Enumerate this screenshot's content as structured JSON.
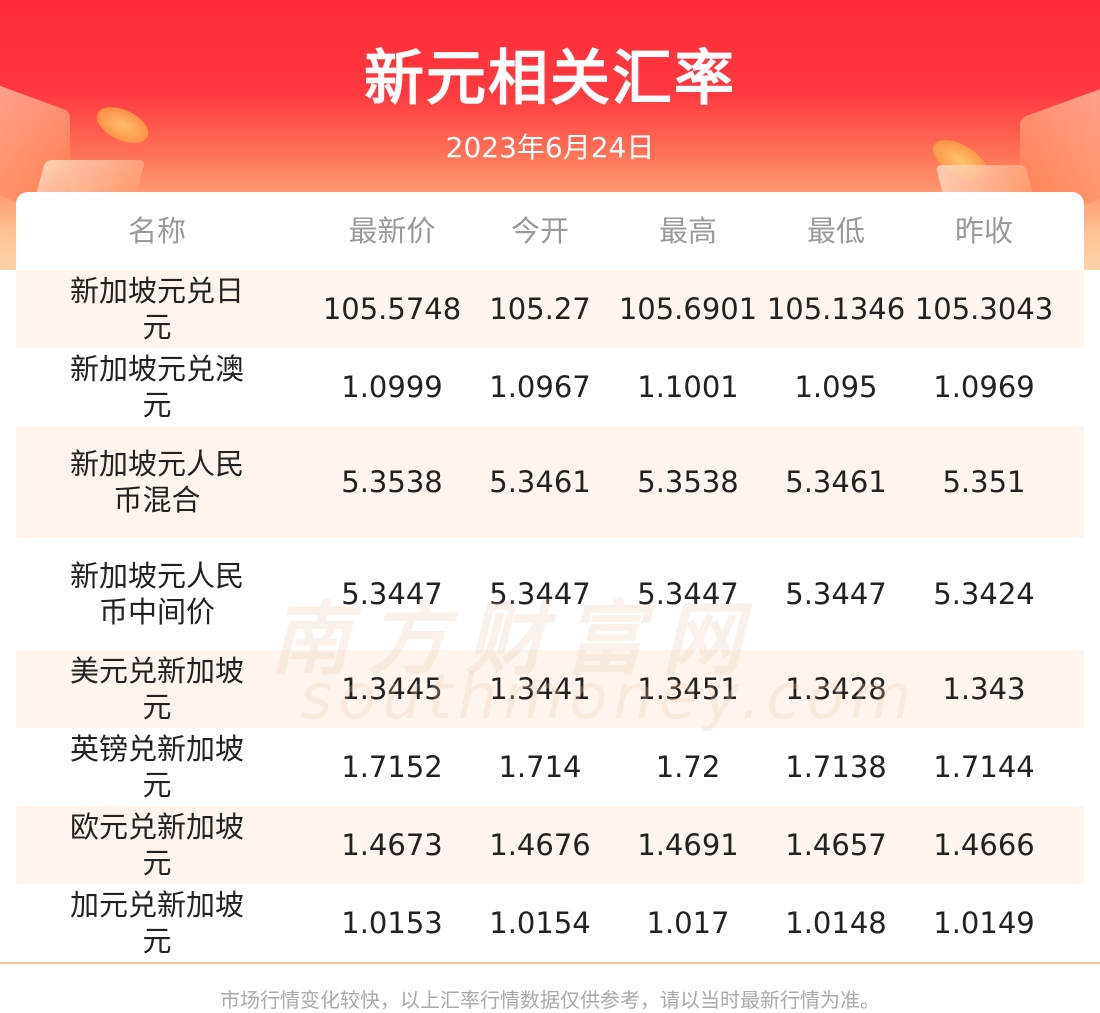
{
  "header": {
    "title": "新元相关汇率",
    "date": "2023年6月24日"
  },
  "table": {
    "columns": [
      "名称",
      "最新价",
      "今开",
      "最高",
      "最低",
      "昨收"
    ],
    "rows": [
      [
        "新加坡元兑日元",
        "105.5748",
        "105.27",
        "105.6901",
        "105.1346",
        "105.3043"
      ],
      [
        "新加坡元兑澳元",
        "1.0999",
        "1.0967",
        "1.1001",
        "1.095",
        "1.0969"
      ],
      [
        "新加坡元人民币混合",
        "5.3538",
        "5.3461",
        "5.3538",
        "5.3461",
        "5.351"
      ],
      [
        "新加坡元人民币中间价",
        "5.3447",
        "5.3447",
        "5.3447",
        "5.3447",
        "5.3424"
      ],
      [
        "美元兑新加坡元",
        "1.3445",
        "1.3441",
        "1.3451",
        "1.3428",
        "1.343"
      ],
      [
        "英镑兑新加坡元",
        "1.7152",
        "1.714",
        "1.72",
        "1.7138",
        "1.7144"
      ],
      [
        "欧元兑新加坡元",
        "1.4673",
        "1.4676",
        "1.4691",
        "1.4657",
        "1.4666"
      ],
      [
        "加元兑新加坡元",
        "1.0153",
        "1.0154",
        "1.017",
        "1.0148",
        "1.0149"
      ]
    ]
  },
  "watermark": {
    "cn": "南方财富网",
    "en": "southmoney.com"
  },
  "footer": {
    "disclaimer": "市场行情变化较快，以上汇率行情数据仅供参考，请以当时最新行情为准。"
  },
  "colors": {
    "banner_red": "#ff2b36",
    "row_alt": "#fef6ee",
    "divider": "#fbc79a"
  }
}
